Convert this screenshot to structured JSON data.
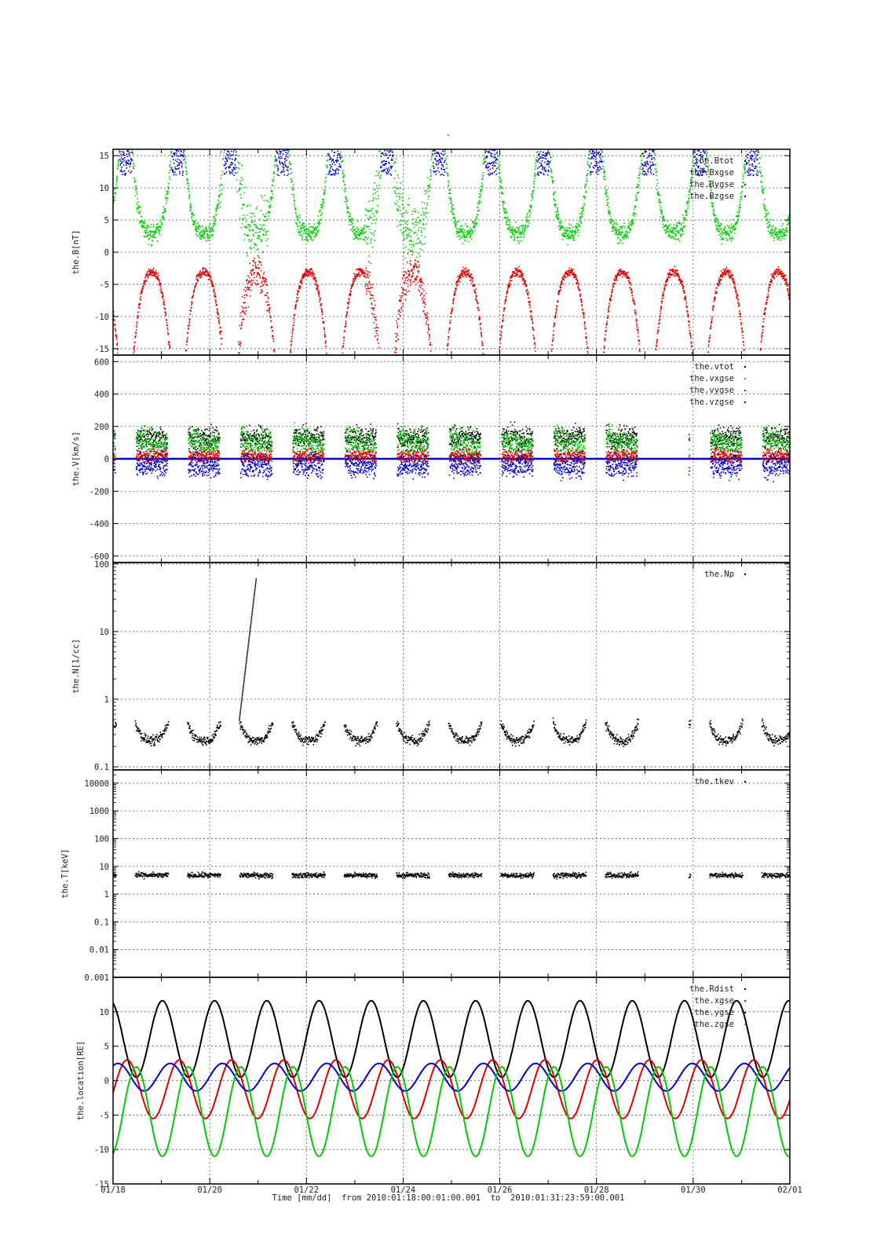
{
  "page_title": "-",
  "colors": {
    "black": "#000000",
    "red": "#dd0000",
    "green": "#00cc00",
    "blue": "#0000cc",
    "grid": "#555555"
  },
  "time_axis": {
    "label": "Time [mm/dd]  from 2010:01:18:00:01:00.001  to  2010:01:31:23:59:00.001",
    "start": "2010-01-18T00:01:00",
    "end": "2010-02-01T00:00:00",
    "tick_labels": [
      "01/18",
      "01/20",
      "01/22",
      "01/24",
      "01/26",
      "01/28",
      "01/30",
      "02/01"
    ],
    "minor_ticks": "daily",
    "grid": "dotted, every 2 days"
  },
  "chart_data": [
    {
      "type": "scatter",
      "ylabel": "the.B[nT]",
      "yscale": "linear",
      "ylim": [
        -16,
        16
      ],
      "yticks": [
        15,
        10,
        5,
        0,
        -5,
        -10,
        -15
      ],
      "ytick_labels": [
        "15",
        "10",
        "5",
        "0",
        "-5",
        "-10",
        "-15"
      ],
      "legend": "top-right",
      "series": [
        {
          "name": "the.Btot",
          "color": "black"
        },
        {
          "name": "the.Bxgse",
          "color": "green"
        },
        {
          "name": "the.Bygse",
          "color": "red"
        },
        {
          "name": "the.Bzgse",
          "color": "blue"
        }
      ]
    },
    {
      "type": "scatter",
      "ylabel": "the.V[km/s]",
      "yscale": "linear",
      "ylim": [
        -640,
        640
      ],
      "yticks": [
        600,
        400,
        200,
        0,
        -200,
        -400,
        -600
      ],
      "ytick_labels": [
        "600",
        "400",
        "200",
        "0",
        "-200",
        "-400",
        "-600"
      ],
      "legend": "top-right",
      "series": [
        {
          "name": "the.vtot",
          "color": "black"
        },
        {
          "name": "the.vxgse",
          "color": "green"
        },
        {
          "name": "the.vygse",
          "color": "red"
        },
        {
          "name": "the.vzgse",
          "color": "blue"
        }
      ]
    },
    {
      "type": "scatter",
      "ylabel": "the.N[1/cc]",
      "yscale": "log",
      "ylim": [
        0.09,
        105
      ],
      "yticks": [
        100,
        10,
        1,
        0.1
      ],
      "ytick_labels": [
        "100",
        "10",
        "1",
        "0.1"
      ],
      "legend": "top-right",
      "series": [
        {
          "name": "the.Np",
          "color": "black"
        }
      ]
    },
    {
      "type": "scatter",
      "ylabel": "the.T[keV]",
      "yscale": "log",
      "ylim": [
        0.001,
        30000
      ],
      "yticks": [
        10000,
        1000,
        100,
        10,
        1,
        0.1,
        0.01,
        0.001
      ],
      "ytick_labels": [
        "10000",
        "1000",
        "100",
        "10",
        "1",
        "0.1",
        "0.01",
        "0.001"
      ],
      "legend": "top-right",
      "series": [
        {
          "name": "the.tkev",
          "color": "black"
        }
      ]
    },
    {
      "type": "line",
      "ylabel": "the.location[RE]",
      "yscale": "linear",
      "ylim": [
        -15,
        15
      ],
      "yticks": [
        15,
        10,
        5,
        0,
        -5,
        -10,
        -15
      ],
      "ytick_labels": [
        "",
        "10",
        "5",
        "0",
        "-5",
        "-10",
        "-15"
      ],
      "legend": "top-right",
      "orbit_period_days": 1.08,
      "series": [
        {
          "name": "the.Rdist",
          "color": "black",
          "range": [
            0.5,
            11.6
          ]
        },
        {
          "name": "the.xgse",
          "color": "red",
          "range": [
            -5.5,
            3
          ]
        },
        {
          "name": "the.ygse",
          "color": "blue",
          "range": [
            -1.5,
            2.5
          ]
        },
        {
          "name": "the.zgse",
          "color": "green",
          "range": [
            -11,
            2
          ]
        }
      ]
    }
  ]
}
